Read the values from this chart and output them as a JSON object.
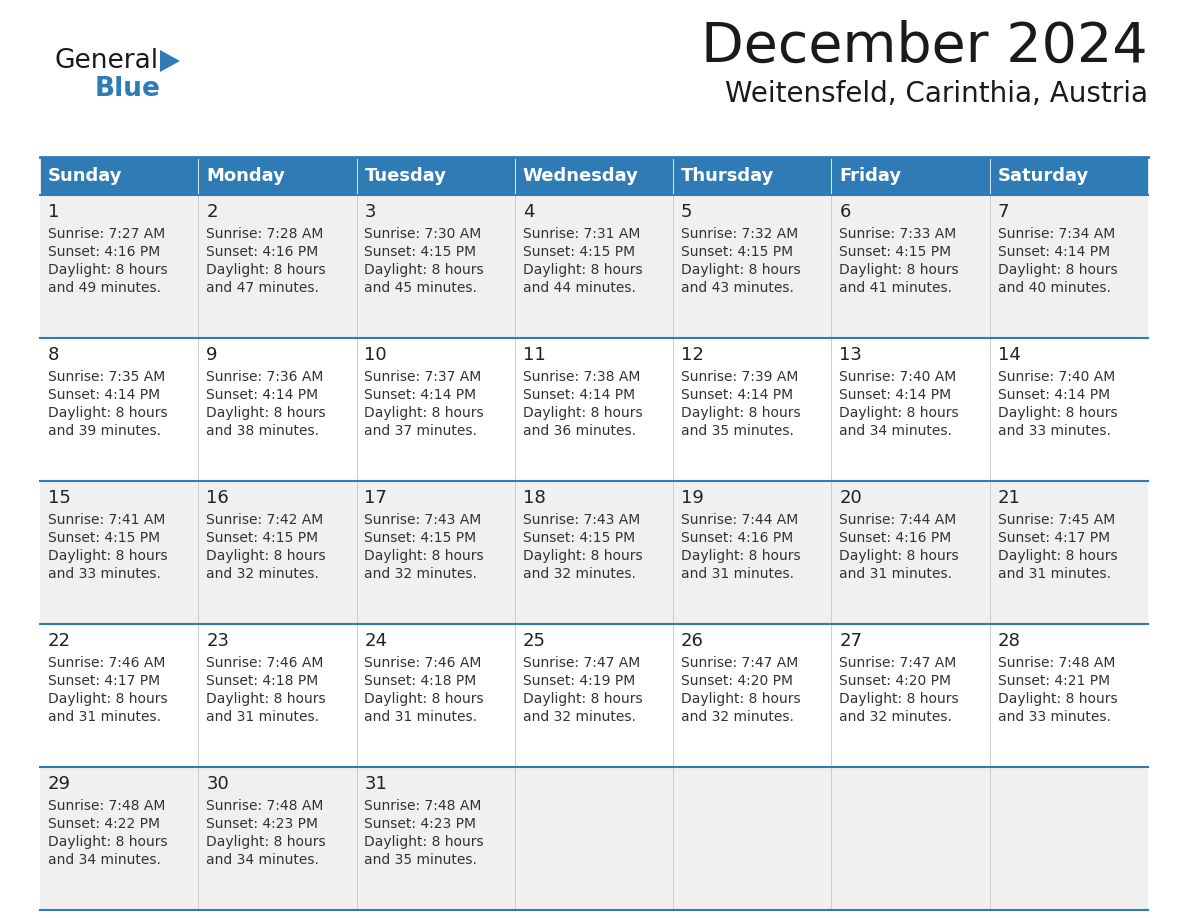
{
  "title": "December 2024",
  "subtitle": "Weitensfeld, Carinthia, Austria",
  "days_of_week": [
    "Sunday",
    "Monday",
    "Tuesday",
    "Wednesday",
    "Thursday",
    "Friday",
    "Saturday"
  ],
  "header_bg": "#2E7BB5",
  "header_text": "#FFFFFF",
  "cell_bg_odd": "#F0F0F0",
  "cell_bg_even": "#FFFFFF",
  "day_num_color": "#222222",
  "info_color": "#333333",
  "border_color": "#2E7BB5",
  "title_color": "#1a1a1a",
  "subtitle_color": "#1a1a1a",
  "logo_general_color": "#1a1a1a",
  "logo_blue_color": "#2E7BB5",
  "calendar": [
    [
      {
        "day": 1,
        "sunrise": "7:27 AM",
        "sunset": "4:16 PM",
        "daylight_mins": "49"
      },
      {
        "day": 2,
        "sunrise": "7:28 AM",
        "sunset": "4:16 PM",
        "daylight_mins": "47"
      },
      {
        "day": 3,
        "sunrise": "7:30 AM",
        "sunset": "4:15 PM",
        "daylight_mins": "45"
      },
      {
        "day": 4,
        "sunrise": "7:31 AM",
        "sunset": "4:15 PM",
        "daylight_mins": "44"
      },
      {
        "day": 5,
        "sunrise": "7:32 AM",
        "sunset": "4:15 PM",
        "daylight_mins": "43"
      },
      {
        "day": 6,
        "sunrise": "7:33 AM",
        "sunset": "4:15 PM",
        "daylight_mins": "41"
      },
      {
        "day": 7,
        "sunrise": "7:34 AM",
        "sunset": "4:14 PM",
        "daylight_mins": "40"
      }
    ],
    [
      {
        "day": 8,
        "sunrise": "7:35 AM",
        "sunset": "4:14 PM",
        "daylight_mins": "39"
      },
      {
        "day": 9,
        "sunrise": "7:36 AM",
        "sunset": "4:14 PM",
        "daylight_mins": "38"
      },
      {
        "day": 10,
        "sunrise": "7:37 AM",
        "sunset": "4:14 PM",
        "daylight_mins": "37"
      },
      {
        "day": 11,
        "sunrise": "7:38 AM",
        "sunset": "4:14 PM",
        "daylight_mins": "36"
      },
      {
        "day": 12,
        "sunrise": "7:39 AM",
        "sunset": "4:14 PM",
        "daylight_mins": "35"
      },
      {
        "day": 13,
        "sunrise": "7:40 AM",
        "sunset": "4:14 PM",
        "daylight_mins": "34"
      },
      {
        "day": 14,
        "sunrise": "7:40 AM",
        "sunset": "4:14 PM",
        "daylight_mins": "33"
      }
    ],
    [
      {
        "day": 15,
        "sunrise": "7:41 AM",
        "sunset": "4:15 PM",
        "daylight_mins": "33"
      },
      {
        "day": 16,
        "sunrise": "7:42 AM",
        "sunset": "4:15 PM",
        "daylight_mins": "32"
      },
      {
        "day": 17,
        "sunrise": "7:43 AM",
        "sunset": "4:15 PM",
        "daylight_mins": "32"
      },
      {
        "day": 18,
        "sunrise": "7:43 AM",
        "sunset": "4:15 PM",
        "daylight_mins": "32"
      },
      {
        "day": 19,
        "sunrise": "7:44 AM",
        "sunset": "4:16 PM",
        "daylight_mins": "31"
      },
      {
        "day": 20,
        "sunrise": "7:44 AM",
        "sunset": "4:16 PM",
        "daylight_mins": "31"
      },
      {
        "day": 21,
        "sunrise": "7:45 AM",
        "sunset": "4:17 PM",
        "daylight_mins": "31"
      }
    ],
    [
      {
        "day": 22,
        "sunrise": "7:46 AM",
        "sunset": "4:17 PM",
        "daylight_mins": "31"
      },
      {
        "day": 23,
        "sunrise": "7:46 AM",
        "sunset": "4:18 PM",
        "daylight_mins": "31"
      },
      {
        "day": 24,
        "sunrise": "7:46 AM",
        "sunset": "4:18 PM",
        "daylight_mins": "31"
      },
      {
        "day": 25,
        "sunrise": "7:47 AM",
        "sunset": "4:19 PM",
        "daylight_mins": "32"
      },
      {
        "day": 26,
        "sunrise": "7:47 AM",
        "sunset": "4:20 PM",
        "daylight_mins": "32"
      },
      {
        "day": 27,
        "sunrise": "7:47 AM",
        "sunset": "4:20 PM",
        "daylight_mins": "32"
      },
      {
        "day": 28,
        "sunrise": "7:48 AM",
        "sunset": "4:21 PM",
        "daylight_mins": "33"
      }
    ],
    [
      {
        "day": 29,
        "sunrise": "7:48 AM",
        "sunset": "4:22 PM",
        "daylight_mins": "34"
      },
      {
        "day": 30,
        "sunrise": "7:48 AM",
        "sunset": "4:23 PM",
        "daylight_mins": "34"
      },
      {
        "day": 31,
        "sunrise": "7:48 AM",
        "sunset": "4:23 PM",
        "daylight_mins": "35"
      },
      null,
      null,
      null,
      null
    ]
  ]
}
